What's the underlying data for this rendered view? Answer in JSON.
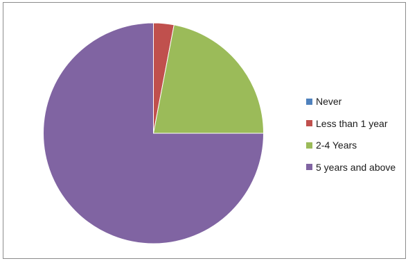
{
  "chart_data": {
    "type": "pie",
    "title": "",
    "categories": [
      "Never",
      "Less than 1 year",
      "2-4 Years",
      "5 years and above"
    ],
    "values": [
      0,
      3,
      22,
      75
    ],
    "unit": "percent",
    "colors": [
      "#4f81bd",
      "#c0504d",
      "#9bbb59",
      "#8064a2"
    ],
    "start_angle": "12 o'clock",
    "direction": "clockwise",
    "legend": "right"
  }
}
